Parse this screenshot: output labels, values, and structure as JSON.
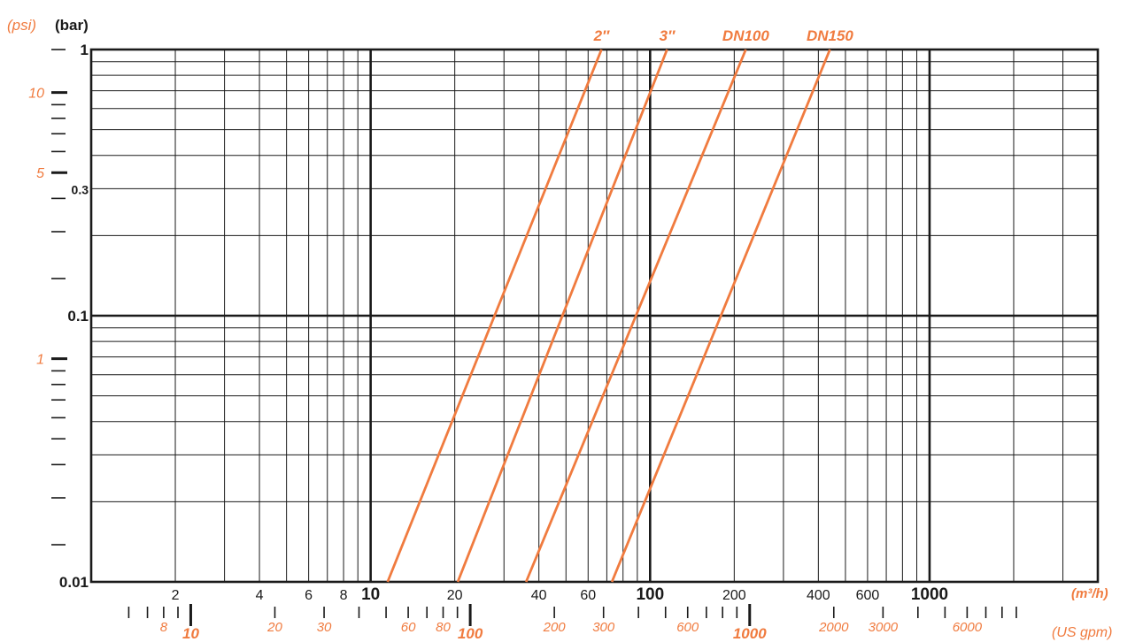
{
  "chart_data": {
    "type": "line",
    "x_scale": "log",
    "y_scale": "log",
    "xlim": [
      1,
      4000
    ],
    "ylim": [
      0.01,
      1
    ],
    "grid": true,
    "colors": {
      "series": "#f07b3f",
      "grid": "#1a1a1a"
    },
    "y_unit_bar": "(bar)",
    "y_unit_psi": "(psi)",
    "x_unit_m3h": "(m³/h)",
    "x_unit_gpm": "(US gpm)",
    "y_ticks_bar": [
      {
        "value": 1,
        "label": "1"
      },
      {
        "value": 0.3,
        "label": "0.3"
      },
      {
        "value": 0.1,
        "label": "0.1"
      },
      {
        "value": 0.01,
        "label": "0.01"
      }
    ],
    "y_ticks_psi": [
      {
        "value": 10,
        "label": "10"
      },
      {
        "value": 5,
        "label": "5"
      },
      {
        "value": 1,
        "label": "1"
      }
    ],
    "x_ticks_m3h": [
      {
        "value": 2,
        "label": "2"
      },
      {
        "value": 4,
        "label": "4"
      },
      {
        "value": 6,
        "label": "6"
      },
      {
        "value": 8,
        "label": "8"
      },
      {
        "value": 10,
        "label": "10"
      },
      {
        "value": 20,
        "label": "20"
      },
      {
        "value": 40,
        "label": "40"
      },
      {
        "value": 60,
        "label": "60"
      },
      {
        "value": 100,
        "label": "100"
      },
      {
        "value": 200,
        "label": "200"
      },
      {
        "value": 400,
        "label": "400"
      },
      {
        "value": 600,
        "label": "600"
      },
      {
        "value": 1000,
        "label": "1000"
      }
    ],
    "x_ticks_gpm": [
      {
        "value": 8,
        "label": "8"
      },
      {
        "value": 10,
        "label": "10"
      },
      {
        "value": 20,
        "label": "20"
      },
      {
        "value": 30,
        "label": "30"
      },
      {
        "value": 60,
        "label": "60"
      },
      {
        "value": 80,
        "label": "80"
      },
      {
        "value": 100,
        "label": "100"
      },
      {
        "value": 200,
        "label": "200"
      },
      {
        "value": 300,
        "label": "300"
      },
      {
        "value": 600,
        "label": "600"
      },
      {
        "value": 1000,
        "label": "1000"
      },
      {
        "value": 2000,
        "label": "2000"
      },
      {
        "value": 3000,
        "label": "3000"
      },
      {
        "value": 6000,
        "label": "6000"
      }
    ],
    "series": [
      {
        "name": "2″",
        "points": [
          [
            11.5,
            0.01
          ],
          [
            67,
            1
          ]
        ]
      },
      {
        "name": "3″",
        "points": [
          [
            20.5,
            0.01
          ],
          [
            115,
            1
          ]
        ]
      },
      {
        "name": "DN100",
        "points": [
          [
            36,
            0.01
          ],
          [
            220,
            1
          ]
        ]
      },
      {
        "name": "DN150",
        "points": [
          [
            73,
            0.01
          ],
          [
            440,
            1
          ]
        ]
      }
    ]
  }
}
